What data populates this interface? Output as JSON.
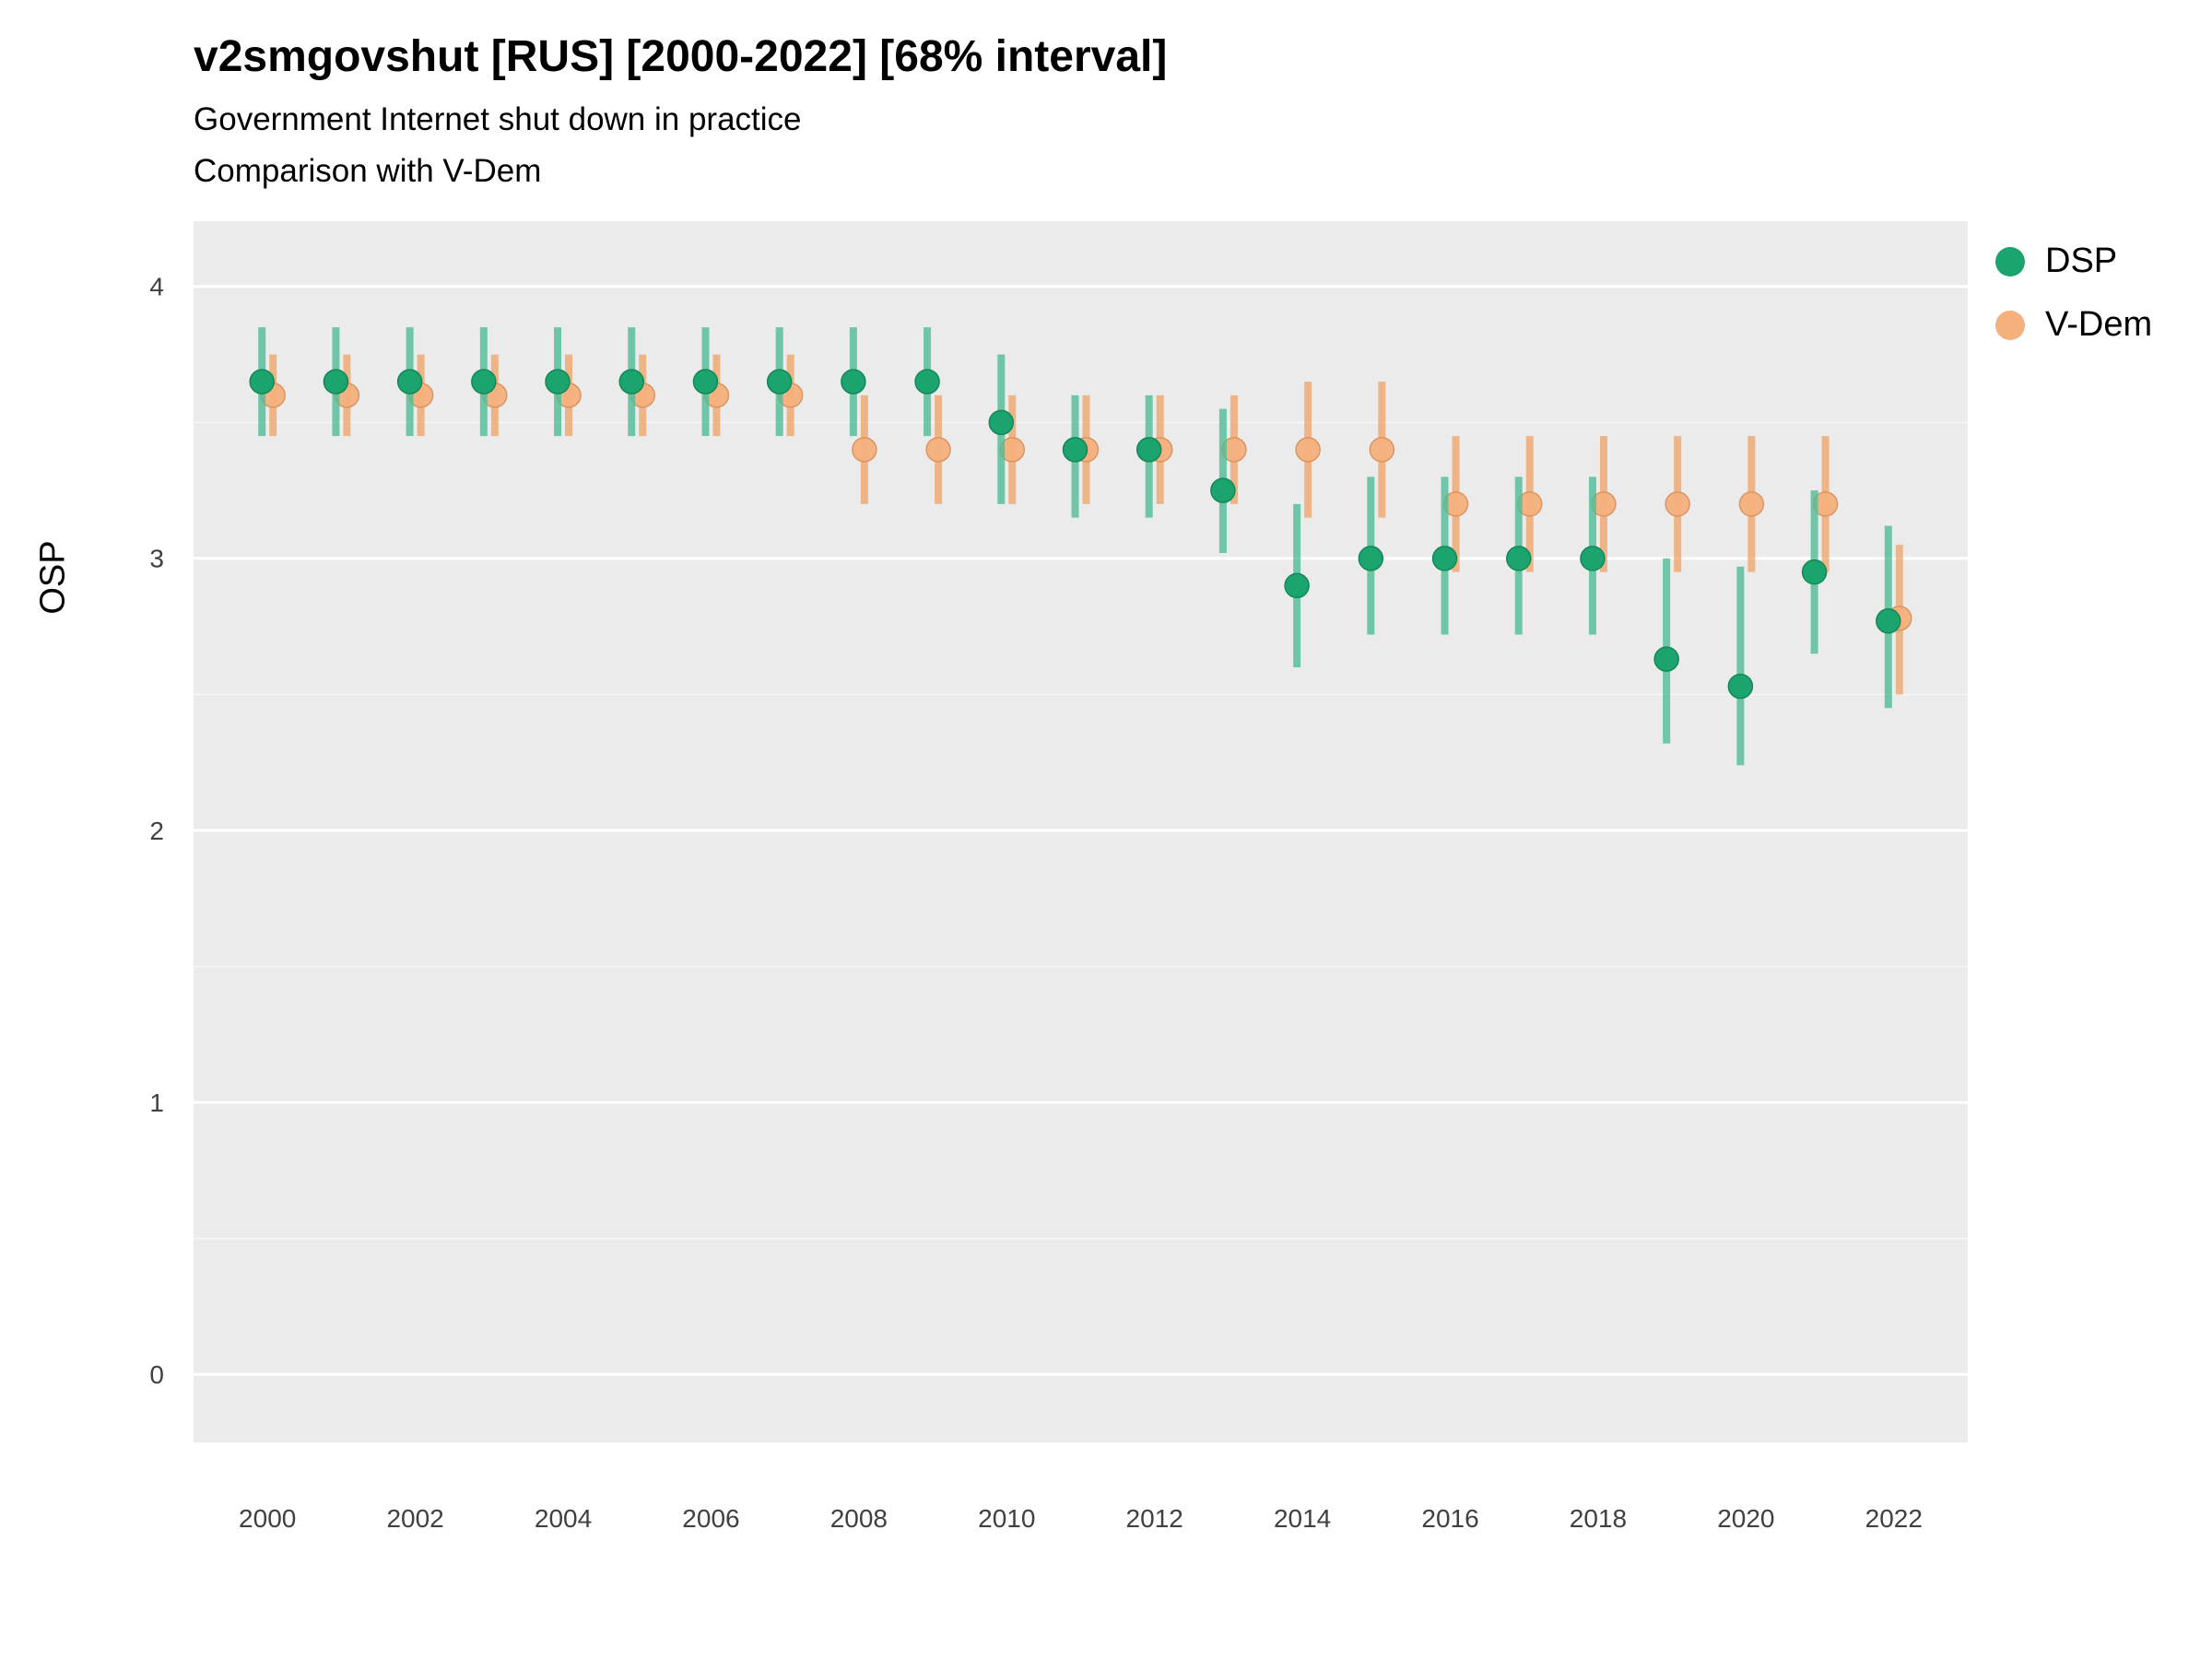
{
  "header": {
    "title": "v2smgovshut [RUS] [2000-2022] [68% interval]",
    "subtitle1": "Government Internet shut down in practice",
    "subtitle2": "Comparison with V-Dem"
  },
  "legend": [
    {
      "label": "DSP",
      "color": "#1CA46E"
    },
    {
      "label": "V-Dem",
      "color": "#F4B07D"
    }
  ],
  "chart_data": {
    "type": "scatter",
    "title": "v2smgovshut [RUS] [2000-2022] [68% interval]",
    "subtitle": "Government Internet shut down in practice — Comparison with V-Dem",
    "xlabel": "",
    "ylabel": "OSP",
    "xlim": [
      1999,
      2023
    ],
    "ylim": [
      -0.25,
      4.24
    ],
    "xticks": [
      2000,
      2002,
      2004,
      2006,
      2008,
      2010,
      2012,
      2014,
      2016,
      2018,
      2020,
      2022
    ],
    "yticks": [
      0,
      1,
      2,
      3,
      4
    ],
    "panel_bg": "#EBEBEB",
    "grid_color": "#FFFFFF",
    "tick_label_color": "#404040",
    "legend_position": "right-top",
    "interval_note": "68% interval shown as vertical bars",
    "x": [
      2000,
      2001,
      2002,
      2003,
      2004,
      2005,
      2006,
      2007,
      2008,
      2009,
      2010,
      2011,
      2012,
      2013,
      2014,
      2015,
      2016,
      2017,
      2018,
      2019,
      2020,
      2021,
      2022
    ],
    "series": [
      {
        "name": "DSP",
        "color": "#1CA46E",
        "point_stroke": "#14875A",
        "interval_color": "#4FBE97",
        "interval_opacity": 0.8,
        "point_opacity": 1,
        "values": [
          3.65,
          3.65,
          3.65,
          3.65,
          3.65,
          3.65,
          3.65,
          3.65,
          3.65,
          3.65,
          3.5,
          3.4,
          3.4,
          3.25,
          2.9,
          3.0,
          3.0,
          3.0,
          3.0,
          2.63,
          2.53,
          2.95,
          2.77
        ],
        "lower": [
          3.45,
          3.45,
          3.45,
          3.45,
          3.45,
          3.45,
          3.45,
          3.45,
          3.45,
          3.45,
          3.2,
          3.15,
          3.15,
          3.02,
          2.6,
          2.72,
          2.72,
          2.72,
          2.72,
          2.32,
          2.24,
          2.65,
          2.45
        ],
        "upper": [
          3.85,
          3.85,
          3.85,
          3.85,
          3.85,
          3.85,
          3.85,
          3.85,
          3.85,
          3.85,
          3.75,
          3.6,
          3.6,
          3.55,
          3.2,
          3.3,
          3.3,
          3.3,
          3.3,
          3.0,
          2.97,
          3.25,
          3.12
        ]
      },
      {
        "name": "V-Dem",
        "color": "#F4B07D",
        "point_stroke": "#DB9560",
        "interval_color": "#EFA263",
        "interval_opacity": 0.75,
        "point_opacity": 0.95,
        "values": [
          3.6,
          3.6,
          3.6,
          3.6,
          3.6,
          3.6,
          3.6,
          3.6,
          3.4,
          3.4,
          3.4,
          3.4,
          3.4,
          3.4,
          3.4,
          3.4,
          3.2,
          3.2,
          3.2,
          3.2,
          3.2,
          3.2,
          2.78
        ],
        "lower": [
          3.45,
          3.45,
          3.45,
          3.45,
          3.45,
          3.45,
          3.45,
          3.45,
          3.2,
          3.2,
          3.2,
          3.2,
          3.2,
          3.2,
          3.15,
          3.15,
          2.95,
          2.95,
          2.95,
          2.95,
          2.95,
          2.95,
          2.5
        ],
        "upper": [
          3.75,
          3.75,
          3.75,
          3.75,
          3.75,
          3.75,
          3.75,
          3.75,
          3.6,
          3.6,
          3.6,
          3.6,
          3.6,
          3.6,
          3.65,
          3.65,
          3.45,
          3.45,
          3.45,
          3.45,
          3.45,
          3.45,
          3.05
        ]
      }
    ]
  }
}
